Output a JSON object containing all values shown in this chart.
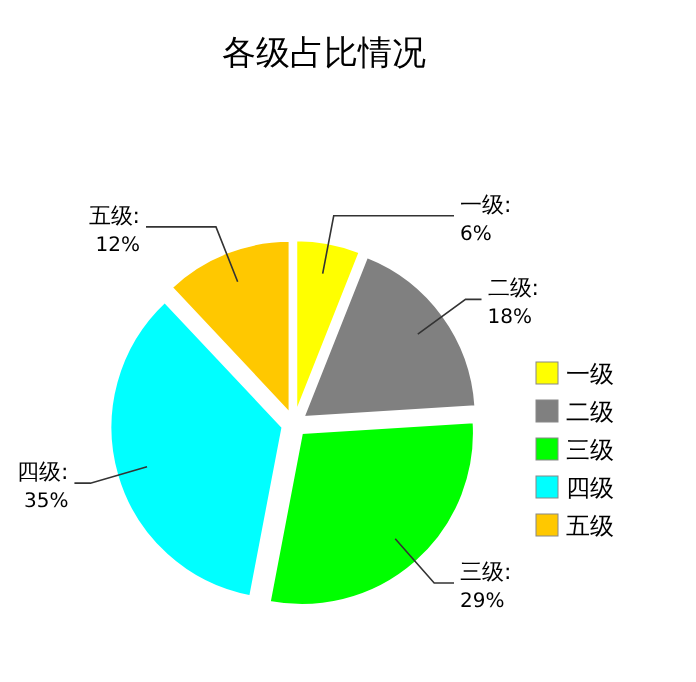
{
  "chart_data": {
    "type": "pie",
    "title": "各级占比情况",
    "categories": [
      "一级",
      "二级",
      "三级",
      "四级",
      "五级"
    ],
    "values": [
      6,
      18,
      29,
      35,
      12
    ],
    "value_labels": [
      "一级:\n6%",
      "二级:\n18%",
      "三级:\n29%",
      "四级:\n35%",
      "五级:\n12%"
    ],
    "colors": [
      "#ffff00",
      "#808080",
      "#00ff00",
      "#00ffff",
      "#ffc800"
    ],
    "legend": "right"
  }
}
